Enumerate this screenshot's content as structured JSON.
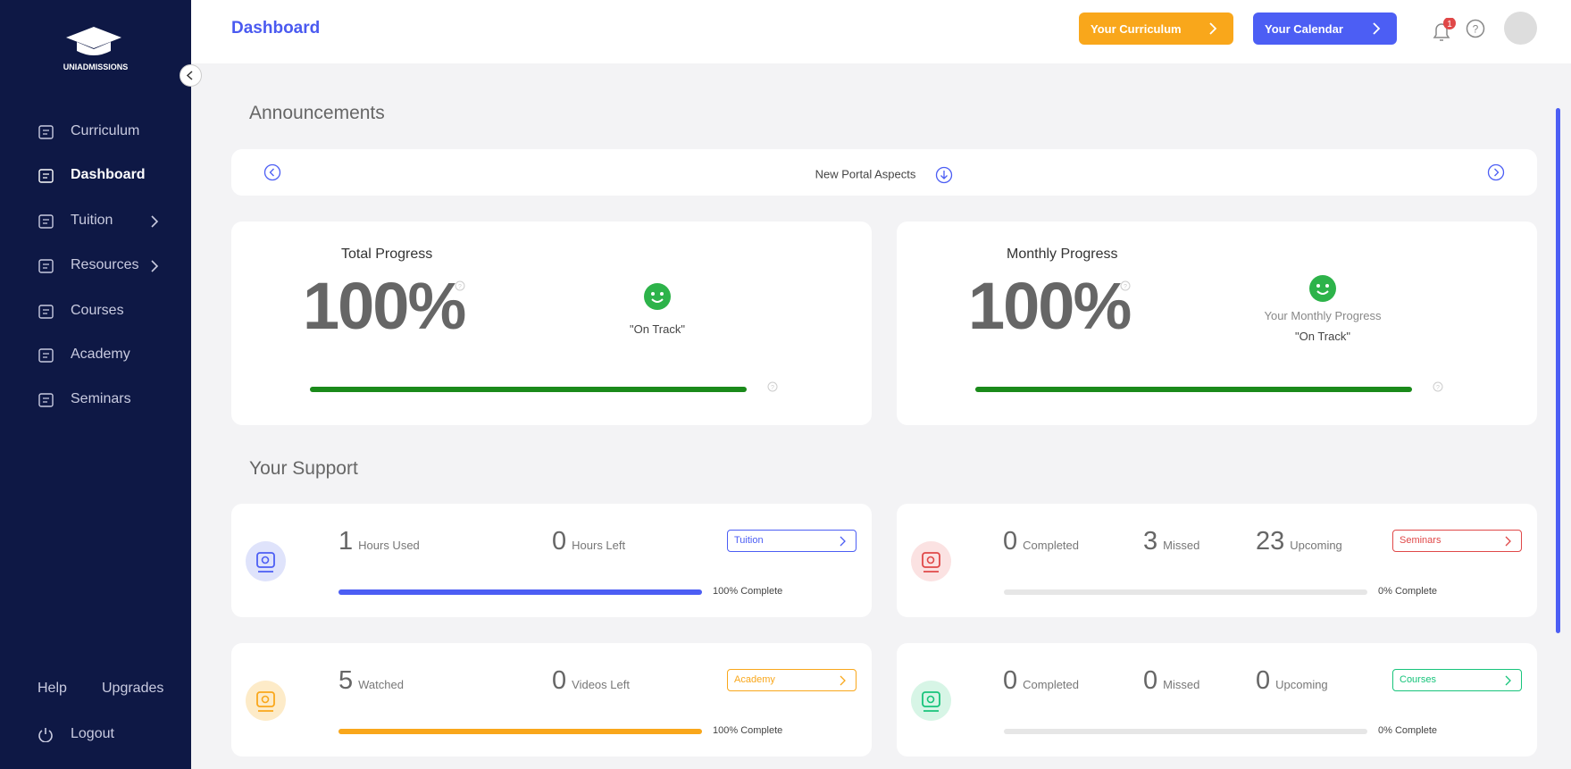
{
  "sidebar": {
    "logo": "UNIADMISSIONS",
    "nav": [
      {
        "label": "Curriculum",
        "expandable": false
      },
      {
        "label": "Dashboard",
        "expandable": false
      },
      {
        "label": "Tuition",
        "expandable": true
      },
      {
        "label": "Resources",
        "expandable": true
      },
      {
        "label": "Courses",
        "expandable": false
      },
      {
        "label": "Academy",
        "expandable": false
      },
      {
        "label": "Seminars",
        "expandable": false
      }
    ],
    "active": 1,
    "help": "Help",
    "upgrades": "Upgrades",
    "logout": "Logout"
  },
  "header": {
    "title": "Dashboard",
    "buttons": [
      {
        "label": "Your Curriculum",
        "color": "#f9a71b"
      },
      {
        "label": "Your Calendar",
        "color": "#4c5ef4"
      }
    ],
    "notifications": 1
  },
  "announcements": {
    "title": "Announcements",
    "item": "New Portal Aspects"
  },
  "progress_cards": [
    {
      "title": "Total Progress",
      "percent_label": "100%",
      "percent": 100,
      "status": "\"On Track\""
    },
    {
      "title": "Monthly Progress",
      "percent_label": "100%",
      "percent": 100,
      "caption": "Your Monthly Progress",
      "status": "\"On Track\""
    }
  ],
  "support": {
    "title": "Your Support",
    "cards": [
      {
        "stats": [
          {
            "value": 1,
            "label": "Hours Used"
          },
          {
            "value": 0,
            "label": "Hours Left"
          }
        ],
        "button": "Tuition",
        "color": "#4c5ef4",
        "bg": "#dfe3fb",
        "percent": 100,
        "complete_label": "100% Complete"
      },
      {
        "stats": [
          {
            "value": 0,
            "label": "Completed"
          },
          {
            "value": 3,
            "label": "Missed"
          },
          {
            "value": 23,
            "label": "Upcoming"
          }
        ],
        "button": "Seminars",
        "color": "#e04848",
        "bg": "#fbe2e2",
        "percent": 0,
        "complete_label": "0% Complete"
      },
      {
        "stats": [
          {
            "value": 5,
            "label": "Watched"
          },
          {
            "value": 0,
            "label": "Videos Left"
          }
        ],
        "button": "Academy",
        "color": "#f9a71b",
        "bg": "#fdebc8",
        "percent": 100,
        "complete_label": "100% Complete"
      },
      {
        "stats": [
          {
            "value": 0,
            "label": "Completed"
          },
          {
            "value": 0,
            "label": "Missed"
          },
          {
            "value": 0,
            "label": "Upcoming"
          }
        ],
        "button": "Courses",
        "color": "#17c47b",
        "bg": "#d7f5e6",
        "percent": 0,
        "complete_label": "0% Complete"
      }
    ]
  }
}
